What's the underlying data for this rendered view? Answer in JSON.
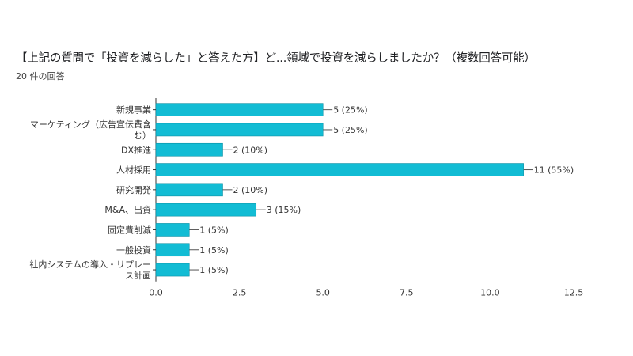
{
  "header": {
    "title": "【上記の質問で「投資を減らした」と答えた方】ど...領域で投資を減らしましたか？（複数回答可能）",
    "response_count": "20 件の回答"
  },
  "colors": {
    "bar": "#12bcd4",
    "axis": "#333333",
    "grid": "#e3e3e3",
    "label": "#333333"
  },
  "chart_data": {
    "type": "bar",
    "orientation": "horizontal",
    "categories": [
      [
        "新規事業"
      ],
      [
        "マーケティング（広告宣伝費含",
        "む）"
      ],
      [
        "DX推進"
      ],
      [
        "人材採用"
      ],
      [
        "研究開発"
      ],
      [
        "M&A、出資"
      ],
      [
        "固定費削減"
      ],
      [
        "一般投資"
      ],
      [
        "社内システムの導入・リプレー",
        "ス計画"
      ]
    ],
    "values": [
      5,
      5,
      2,
      11,
      2,
      3,
      1,
      1,
      1
    ],
    "data_labels": [
      "5 (25%)",
      "5 (25%)",
      "2 (10%)",
      "11 (55%)",
      "2 (10%)",
      "3 (15%)",
      "1 (5%)",
      "1 (5%)",
      "1 (5%)"
    ],
    "xlim": [
      0,
      12.5
    ],
    "xticks": [
      0,
      2.5,
      5,
      7.5,
      10,
      12.5
    ],
    "xtick_labels": [
      "0.0",
      "2.5",
      "5.0",
      "7.5",
      "10.0",
      "12.5"
    ],
    "grid": false,
    "legend": "none"
  }
}
